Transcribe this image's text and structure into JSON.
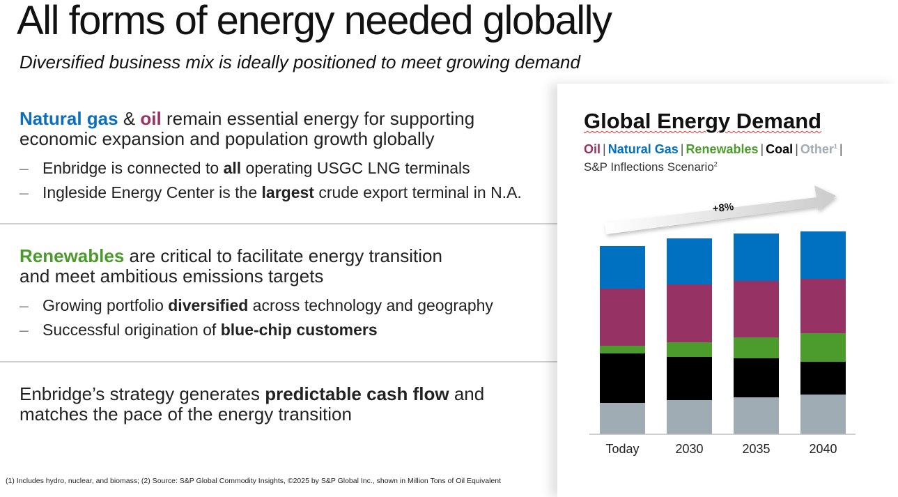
{
  "header": {
    "title": "All forms of energy needed globally",
    "subtitle": "Diversified business mix is ideally positioned to meet growing demand"
  },
  "section1": {
    "gas": "Natural gas",
    "amp": " & ",
    "oil": "oil",
    "rest1": " remain essential energy for supporting",
    "line2": "economic expansion and population growth globally",
    "bullets": [
      {
        "dash": "–",
        "pre": "Enbridge is connected to ",
        "bold": "all",
        "post": " operating USGC LNG terminals"
      },
      {
        "dash": "–",
        "pre": "Ingleside Energy Center is the ",
        "bold": "largest",
        "post": " crude export terminal in N.A."
      }
    ]
  },
  "section2": {
    "ren": "Renewables",
    "rest1": " are critical to facilitate energy transition",
    "line2": "and meet ambitious emissions targets",
    "bullets": [
      {
        "dash": "–",
        "pre": "Growing portfolio ",
        "bold": "diversified",
        "post": " across technology and geography"
      },
      {
        "dash": "–",
        "pre": "Successful origination of ",
        "bold": "blue-chip customers",
        "post": ""
      }
    ]
  },
  "section3": {
    "pre": "Enbridge’s strategy generates ",
    "bold": "predictable cash flow",
    "post": " and",
    "line2": "matches the pace of the energy transition"
  },
  "footnote": "(1) Includes hydro, nuclear, and biomass; (2) Source: S&P Global Commodity Insights, ©2025 by S&P Global Inc., shown in Million Tons of Oil Equivalent",
  "colors": {
    "gas": "#0070c0",
    "oil": "#963264",
    "renewables": "#4b9c2c",
    "coal": "#000000",
    "other": "#a0acb3"
  },
  "chart_data": {
    "type": "bar",
    "stacked": true,
    "title": "Global Energy Demand",
    "legend": [
      {
        "label": "Oil",
        "color": "#963264"
      },
      {
        "label": "Natural Gas",
        "color": "#0070c0"
      },
      {
        "label": "Renewables",
        "color": "#4b9c2c"
      },
      {
        "label": "Coal",
        "color": "#000000"
      },
      {
        "label": "Other",
        "sup": "1",
        "color": "#a0acb3"
      }
    ],
    "legend_separator": "|",
    "scenario": "S&P Inflections Scenario",
    "scenario_sup": "2",
    "categories": [
      "Today",
      "2030",
      "2035",
      "2040"
    ],
    "series": [
      {
        "name": "Other",
        "color": "#a0acb3",
        "values": [
          45,
          49,
          53,
          57
        ]
      },
      {
        "name": "Coal",
        "color": "#000000",
        "values": [
          71,
          62,
          56,
          47
        ]
      },
      {
        "name": "Renewables",
        "color": "#4b9c2c",
        "values": [
          11,
          21,
          30,
          41
        ]
      },
      {
        "name": "Oil",
        "color": "#963264",
        "values": [
          82,
          83,
          81,
          78
        ]
      },
      {
        "name": "Natural Gas",
        "color": "#0070c0",
        "values": [
          61,
          66,
          68,
          68
        ]
      }
    ],
    "annotation": "+8%",
    "ylim": [
      0,
      300
    ],
    "grid": false
  }
}
